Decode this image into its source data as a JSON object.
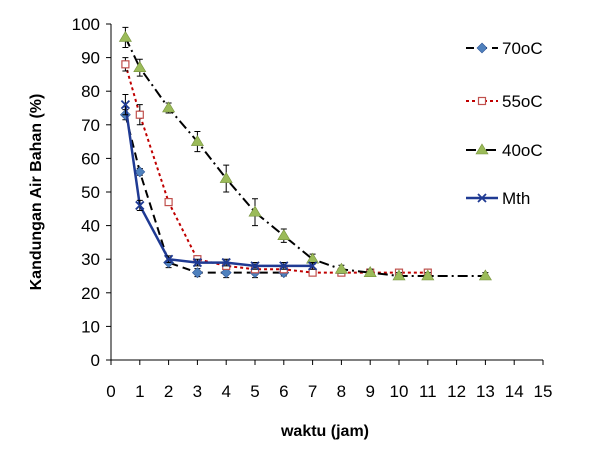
{
  "chart_data": {
    "type": "line",
    "title": "",
    "xlabel": "waktu (jam)",
    "ylabel": "Kandungan Air Bahan (%)",
    "xlim": [
      0,
      15
    ],
    "ylim": [
      0,
      100
    ],
    "x_ticks": [
      "0",
      "1",
      "2",
      "3",
      "4",
      "5",
      "6",
      "7",
      "8",
      "9",
      "10",
      "11",
      "12",
      "13",
      "14",
      "15"
    ],
    "y_ticks": [
      "0",
      "10",
      "20",
      "30",
      "40",
      "50",
      "60",
      "70",
      "80",
      "90",
      "100"
    ],
    "grid": false,
    "legend_position": "right",
    "series": [
      {
        "name": "70oC",
        "color": "#4F81BD",
        "line_color": "#000000",
        "dash": "dash",
        "marker": "diamond",
        "x": [
          0.5,
          1,
          2,
          3,
          4,
          5,
          6
        ],
        "y": [
          73,
          56,
          29,
          26,
          26,
          26,
          26
        ],
        "err": [
          1.5,
          1,
          1.5,
          1.2,
          1.5,
          1.5,
          1
        ]
      },
      {
        "name": "55oC",
        "color": "#C0504D",
        "line_color": "#C00000",
        "dash": "dot",
        "marker": "square",
        "x": [
          0.5,
          1,
          2,
          3,
          4,
          5,
          6,
          7,
          8,
          9,
          10,
          11
        ],
        "y": [
          88,
          73,
          47,
          30,
          28,
          27,
          27,
          26,
          26,
          26,
          26,
          26
        ],
        "err": [
          2,
          3,
          1,
          1,
          1,
          1,
          1,
          0.8,
          0.8,
          0.8,
          0.8,
          1
        ]
      },
      {
        "name": "40oC",
        "color": "#9BBB59",
        "line_color": "#000000",
        "dash": "dashdot",
        "marker": "triangle",
        "x": [
          0.5,
          1,
          2,
          3,
          4,
          5,
          6,
          7,
          8,
          9,
          10,
          11,
          13
        ],
        "y": [
          96,
          87,
          75,
          65,
          54,
          44,
          37,
          30,
          27,
          26,
          25,
          25,
          25
        ],
        "err": [
          3,
          2.5,
          1.5,
          3,
          4,
          4,
          2,
          1.5,
          1.2,
          1,
          1,
          1,
          1
        ]
      },
      {
        "name": "Mth",
        "color": "#1F3A93",
        "line_color": "#1F3A93",
        "dash": "solid",
        "marker": "x",
        "x": [
          0.5,
          1,
          2,
          3,
          4,
          5,
          6,
          7
        ],
        "y": [
          76,
          46,
          30,
          29,
          29,
          28,
          28,
          28
        ],
        "err": [
          3,
          1.5,
          1,
          1,
          1,
          1,
          1,
          1
        ]
      }
    ]
  }
}
